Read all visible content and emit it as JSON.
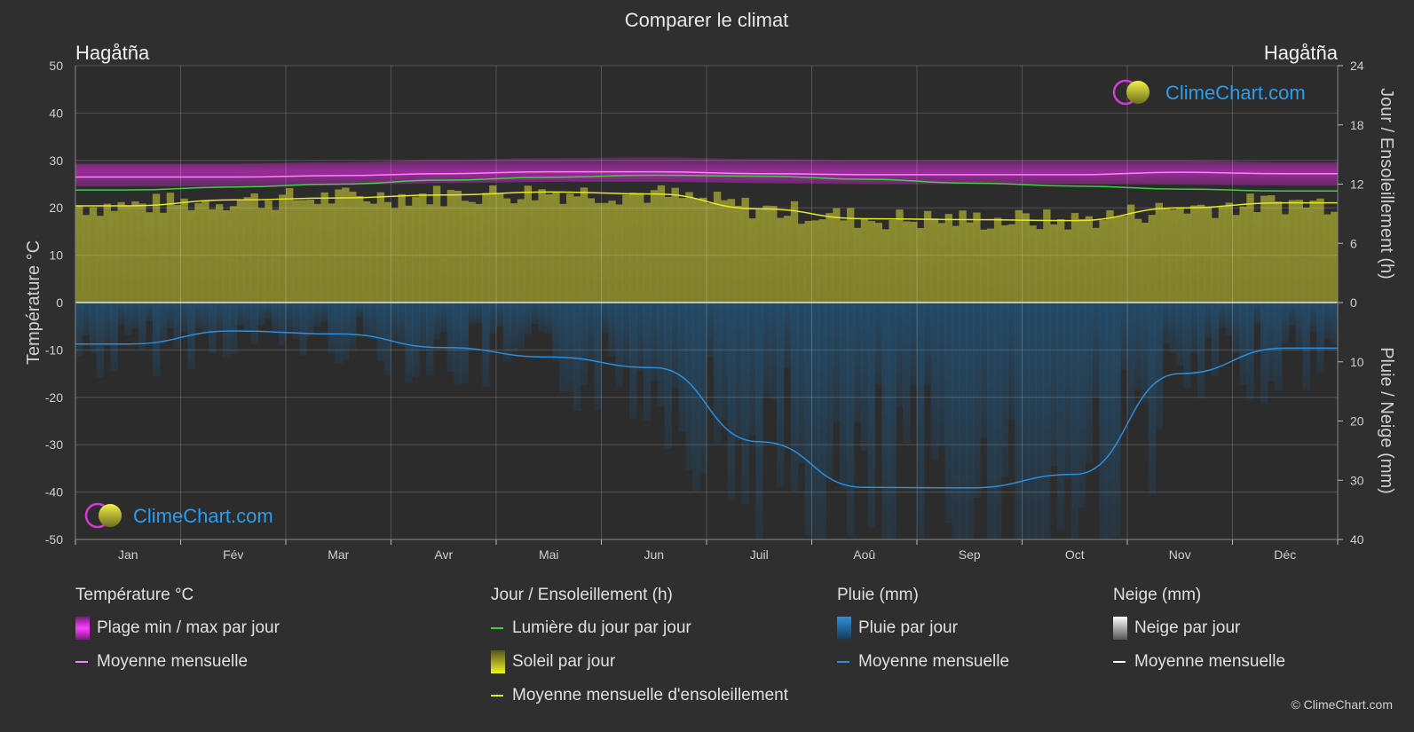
{
  "title": "Comparer le climat",
  "location_left": "Hagåtña",
  "location_right": "Hagåtña",
  "brand": "ClimeChart.com",
  "copyright": "© ClimeChart.com",
  "colors": {
    "background": "#2f2f2f",
    "temp_band": "#c02ac0",
    "temp_mean": "#ff80ff",
    "daylight": "#44cc44",
    "sunshine_fill": "#8f8f30",
    "sunshine_mean": "#e6e62a",
    "rain_fill": "#1f5f8f",
    "rain_mean": "#2a8fe0",
    "snow_mean": "#ffffff",
    "brand_text": "#2a9df0"
  },
  "chart_data": {
    "type": "line",
    "title": "Comparer le climat",
    "months": [
      "Jan",
      "Fév",
      "Mar",
      "Avr",
      "Mai",
      "Jun",
      "Juil",
      "Aoû",
      "Sep",
      "Oct",
      "Nov",
      "Déc"
    ],
    "axes": {
      "left": {
        "label": "Température °C",
        "range": [
          -50,
          50
        ],
        "ticks": [
          50,
          40,
          30,
          20,
          10,
          0,
          -10,
          -20,
          -30,
          -40,
          -50
        ]
      },
      "right_top": {
        "label": "Jour / Ensoleillement (h)",
        "range": [
          0,
          24
        ],
        "ticks": [
          24,
          18,
          12,
          6,
          0
        ]
      },
      "right_bottom": {
        "label": "Pluie / Neige (mm)",
        "range": [
          0,
          40
        ],
        "ticks": [
          10,
          20,
          30,
          40
        ]
      }
    },
    "grid": true,
    "series": [
      {
        "name": "Plage min / max par jour",
        "kind": "band",
        "axis": "temp",
        "min": [
          24.5,
          24.5,
          24.8,
          25.2,
          25.5,
          25.5,
          25.2,
          25.0,
          25.0,
          25.0,
          24.9,
          24.7
        ],
        "max": [
          29.3,
          29.3,
          29.6,
          30.1,
          30.5,
          30.7,
          30.3,
          30.0,
          30.0,
          30.0,
          30.0,
          29.6
        ]
      },
      {
        "name": "Moyenne mensuelle",
        "kind": "line",
        "axis": "temp",
        "color_key": "temp_mean",
        "values": [
          26.5,
          26.5,
          26.8,
          27.2,
          27.6,
          27.6,
          27.2,
          27.0,
          27.0,
          27.0,
          27.5,
          27.2
        ]
      },
      {
        "name": "Lumière du jour par jour",
        "kind": "line",
        "axis": "hours",
        "color_key": "daylight",
        "values": [
          11.4,
          11.7,
          12.0,
          12.4,
          12.7,
          12.9,
          12.8,
          12.5,
          12.1,
          11.8,
          11.5,
          11.3
        ]
      },
      {
        "name": "Soleil par jour",
        "kind": "area",
        "axis": "hours",
        "color_key": "sunshine_fill",
        "values": [
          9.8,
          10.4,
          10.6,
          10.9,
          11.2,
          11.0,
          9.5,
          8.5,
          8.4,
          8.3,
          9.6,
          10.1
        ]
      },
      {
        "name": "Moyenne mensuelle d'ensoleillement",
        "kind": "line",
        "axis": "hours",
        "color_key": "sunshine_mean",
        "values": [
          9.8,
          10.4,
          10.6,
          10.9,
          11.2,
          11.0,
          9.5,
          8.5,
          8.4,
          8.3,
          9.6,
          10.1
        ]
      },
      {
        "name": "Pluie par jour",
        "kind": "area",
        "axis": "precip",
        "color_key": "rain_fill",
        "values": [
          7.0,
          4.8,
          5.3,
          7.6,
          9.2,
          11.0,
          23.5,
          31.2,
          31.3,
          29.0,
          12.0,
          7.7
        ]
      },
      {
        "name": "Moyenne mensuelle",
        "kind": "line",
        "axis": "precip",
        "color_key": "rain_mean",
        "values": [
          7.0,
          4.8,
          5.3,
          7.6,
          9.2,
          11.0,
          23.5,
          31.2,
          31.3,
          29.0,
          12.0,
          7.7
        ]
      },
      {
        "name": "Moyenne mensuelle",
        "kind": "line",
        "axis": "precip",
        "color_key": "snow_mean",
        "values": [
          0,
          0,
          0,
          0,
          0,
          0,
          0,
          0,
          0,
          0,
          0,
          0
        ]
      }
    ]
  },
  "legend": {
    "groups": [
      {
        "title": "Température °C",
        "items": [
          {
            "label": "Plage min / max par jour",
            "swatch": "box",
            "color_key": "temp_band"
          },
          {
            "label": "Moyenne mensuelle",
            "swatch": "line",
            "color_key": "temp_mean"
          }
        ]
      },
      {
        "title": "Jour / Ensoleillement (h)",
        "items": [
          {
            "label": "Lumière du jour par jour",
            "swatch": "line",
            "color_key": "daylight"
          },
          {
            "label": "Soleil par jour",
            "swatch": "box",
            "color_key": "sunshine_mean"
          },
          {
            "label": "Moyenne mensuelle d'ensoleillement",
            "swatch": "line",
            "color_key": "sunshine_mean"
          }
        ]
      },
      {
        "title": "Pluie (mm)",
        "items": [
          {
            "label": "Pluie par jour",
            "swatch": "box",
            "color_key": "rain_mean"
          },
          {
            "label": "Moyenne mensuelle",
            "swatch": "line",
            "color_key": "rain_mean"
          }
        ]
      },
      {
        "title": "Neige (mm)",
        "items": [
          {
            "label": "Neige par jour",
            "swatch": "box",
            "color_key": "snow_mean"
          },
          {
            "label": "Moyenne mensuelle",
            "swatch": "line",
            "color_key": "snow_mean"
          }
        ]
      }
    ]
  }
}
